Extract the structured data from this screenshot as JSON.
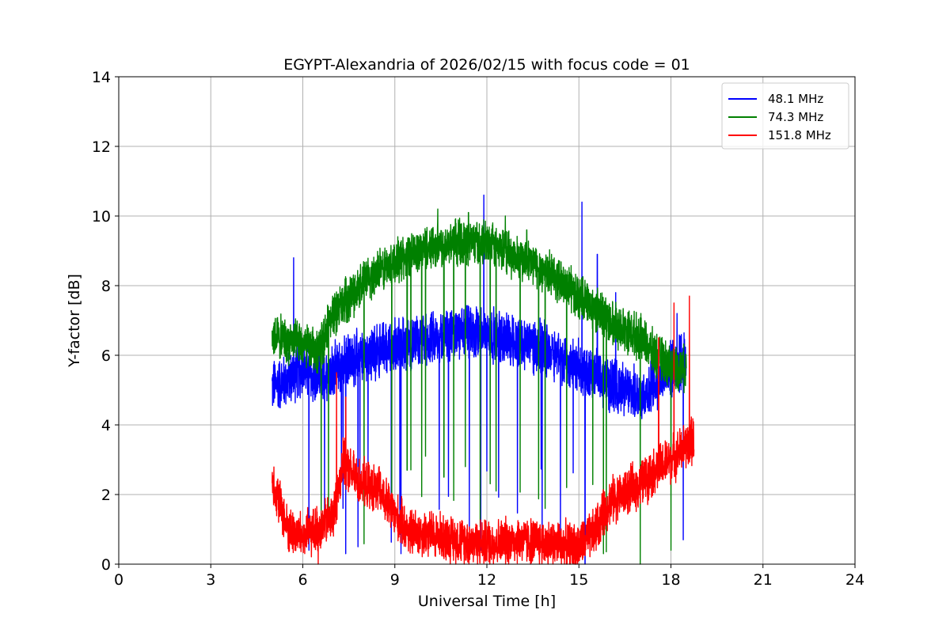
{
  "chart_data": {
    "type": "line",
    "title": "EGYPT-Alexandria of 2026/02/15 with focus code = 01",
    "xlabel": "Universal Time [h]",
    "ylabel": "Y-factor [dB]",
    "xlim": [
      0,
      24
    ],
    "ylim": [
      0,
      14
    ],
    "xticks": [
      "0",
      "3",
      "6",
      "9",
      "12",
      "15",
      "18",
      "21",
      "24"
    ],
    "yticks": [
      "0",
      "2",
      "4",
      "6",
      "8",
      "10",
      "12",
      "14"
    ],
    "grid": true,
    "legend_position": "top-right",
    "series": [
      {
        "name": "48.1 MHz",
        "color": "#0000ff",
        "time_range": [
          5.0,
          18.5
        ],
        "baseline": [
          [
            5.0,
            5.1
          ],
          [
            5.5,
            5.3
          ],
          [
            6.0,
            5.6
          ],
          [
            6.5,
            5.2
          ],
          [
            7.0,
            5.6
          ],
          [
            8.0,
            6.0
          ],
          [
            9.0,
            6.3
          ],
          [
            10.0,
            6.4
          ],
          [
            11.0,
            6.6
          ],
          [
            12.0,
            6.6
          ],
          [
            13.0,
            6.4
          ],
          [
            14.0,
            6.2
          ],
          [
            15.0,
            5.6
          ],
          [
            16.0,
            5.2
          ],
          [
            17.0,
            4.8
          ],
          [
            17.5,
            5.2
          ],
          [
            18.0,
            5.6
          ],
          [
            18.5,
            5.9
          ]
        ],
        "amplitude": 0.9,
        "spikes": [
          [
            5.7,
            8.8
          ],
          [
            11.9,
            10.6
          ],
          [
            15.1,
            10.4
          ],
          [
            16.2,
            7.8
          ],
          [
            15.6,
            8.9
          ],
          [
            18.2,
            7.2
          ]
        ],
        "dropouts": [
          [
            6.2,
            0.4
          ],
          [
            7.4,
            0.3
          ],
          [
            7.8,
            0.5
          ],
          [
            9.2,
            0.3
          ],
          [
            11.8,
            0.4
          ],
          [
            13.8,
            0.3
          ],
          [
            14.4,
            0.5
          ],
          [
            15.2,
            0.0
          ],
          [
            18.4,
            0.7
          ]
        ]
      },
      {
        "name": "74.3 MHz",
        "color": "#008000",
        "time_range": [
          5.0,
          18.5
        ],
        "baseline": [
          [
            5.0,
            6.6
          ],
          [
            5.5,
            6.4
          ],
          [
            6.0,
            6.3
          ],
          [
            6.5,
            6.1
          ],
          [
            7.0,
            7.2
          ],
          [
            8.0,
            8.1
          ],
          [
            9.0,
            8.7
          ],
          [
            10.0,
            9.1
          ],
          [
            11.0,
            9.3
          ],
          [
            12.0,
            9.2
          ],
          [
            13.0,
            8.8
          ],
          [
            14.0,
            8.4
          ],
          [
            15.0,
            7.7
          ],
          [
            16.0,
            7.0
          ],
          [
            17.0,
            6.5
          ],
          [
            17.5,
            6.0
          ],
          [
            18.0,
            5.7
          ],
          [
            18.5,
            5.6
          ]
        ],
        "amplitude": 0.75,
        "spikes": [
          [
            10.4,
            10.2
          ],
          [
            11.4,
            10.1
          ],
          [
            12.6,
            10.0
          ],
          [
            13.3,
            9.6
          ]
        ],
        "dropouts": [
          [
            6.6,
            0.7
          ],
          [
            8.9,
            1.8
          ],
          [
            9.4,
            2.7
          ],
          [
            10.0,
            3.1
          ],
          [
            10.6,
            2.5
          ],
          [
            11.3,
            2.8
          ],
          [
            12.3,
            2.1
          ],
          [
            13.9,
            1.6
          ],
          [
            14.6,
            2.2
          ],
          [
            15.8,
            0.3
          ],
          [
            17.0,
            0.0
          ],
          [
            18.0,
            0.4
          ]
        ]
      },
      {
        "name": "151.8 MHz",
        "color": "#ff0000",
        "time_range": [
          5.0,
          18.75
        ],
        "baseline": [
          [
            5.0,
            2.5
          ],
          [
            5.5,
            1.0
          ],
          [
            6.0,
            0.8
          ],
          [
            6.5,
            1.0
          ],
          [
            7.0,
            1.4
          ],
          [
            7.3,
            2.9
          ],
          [
            7.8,
            2.4
          ],
          [
            8.5,
            2.1
          ],
          [
            9.0,
            1.4
          ],
          [
            9.5,
            0.9
          ],
          [
            10.0,
            0.9
          ],
          [
            11.0,
            0.7
          ],
          [
            12.0,
            0.6
          ],
          [
            13.0,
            0.7
          ],
          [
            14.0,
            0.6
          ],
          [
            15.0,
            0.5
          ],
          [
            15.5,
            0.9
          ],
          [
            16.0,
            1.8
          ],
          [
            17.0,
            2.3
          ],
          [
            17.5,
            2.7
          ],
          [
            18.0,
            3.0
          ],
          [
            18.75,
            3.6
          ]
        ],
        "amplitude": 0.8,
        "spikes": [
          [
            7.1,
            5.5
          ],
          [
            7.4,
            4.8
          ],
          [
            17.6,
            6.5
          ],
          [
            18.6,
            7.7
          ],
          [
            18.1,
            7.5
          ]
        ],
        "dropouts": [
          [
            6.5,
            0.0
          ]
        ]
      }
    ]
  }
}
